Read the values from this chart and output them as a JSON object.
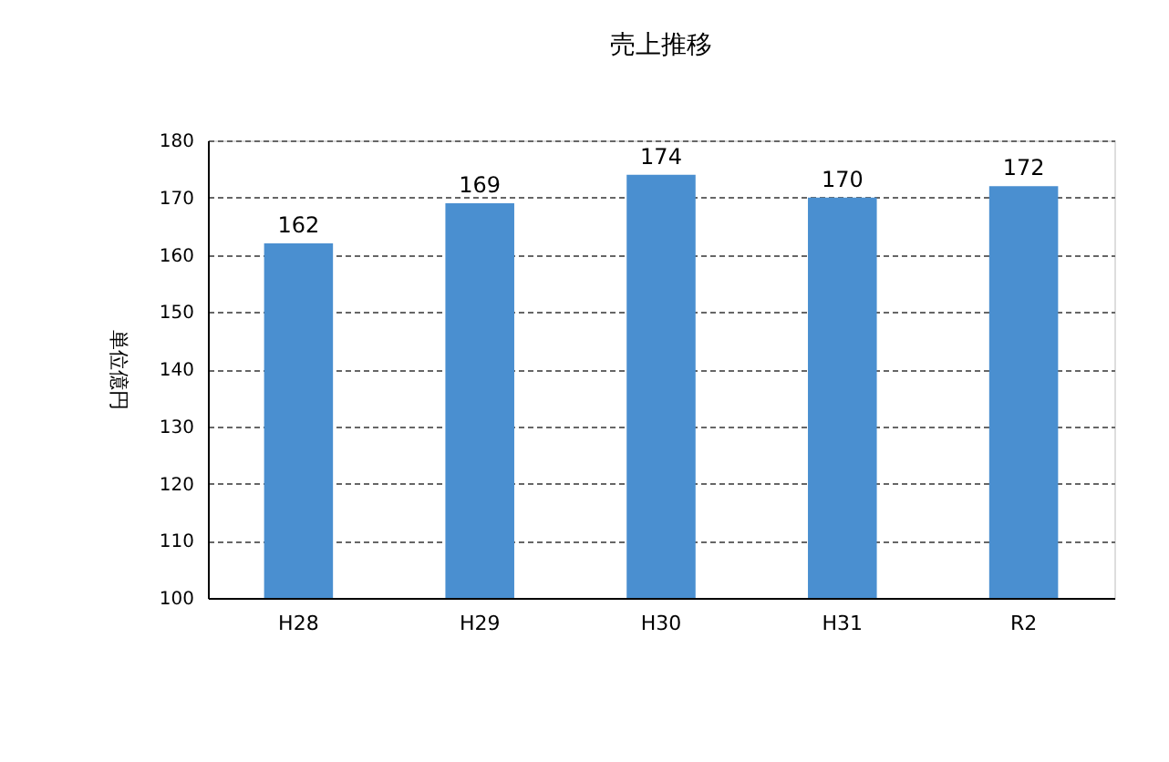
{
  "chart_data": {
    "type": "bar",
    "title": "売上推移",
    "ylabel": "単位億円",
    "categories": [
      "H28",
      "H29",
      "H30",
      "H31",
      "R2"
    ],
    "values": [
      162,
      169,
      174,
      170,
      172
    ],
    "color": "#4a8fd0",
    "ylim": [
      100,
      180
    ],
    "yticks": [
      100,
      110,
      120,
      130,
      140,
      150,
      160,
      170,
      180
    ],
    "grid": "y",
    "data_labels": true
  }
}
